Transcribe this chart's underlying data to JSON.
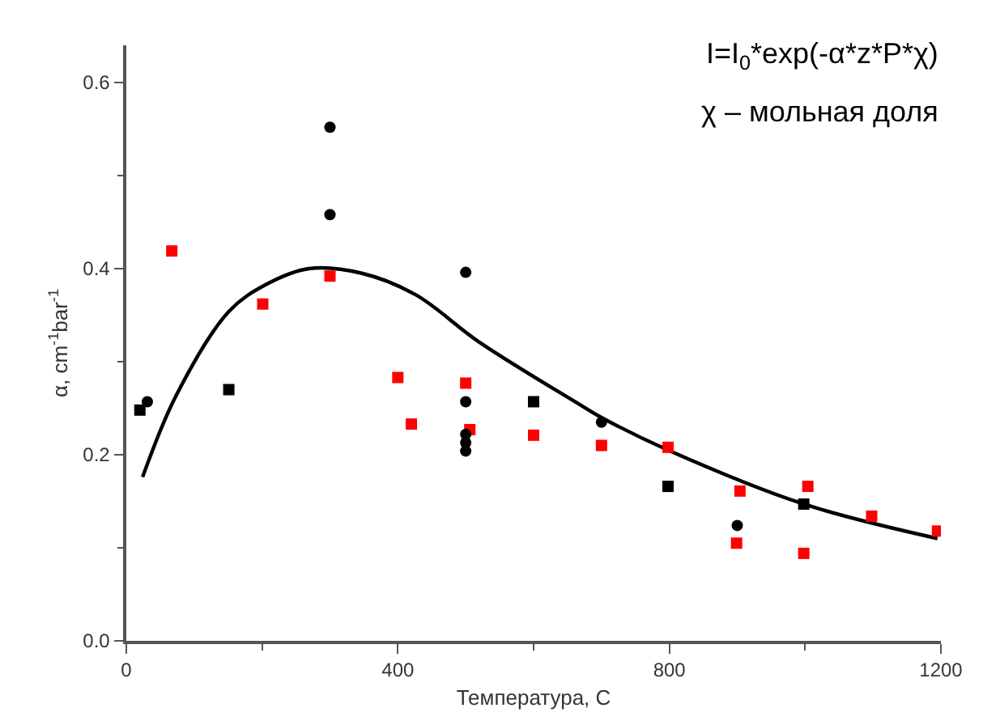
{
  "chart_data": {
    "type": "scatter",
    "xlabel": "Температура, C",
    "ylabel": "α, cm$^{-1}$bar$^{-1}$",
    "annotations": [
      "I=I$_{0}$*exp(-α*z*P*χ)",
      "χ – мольная доля"
    ],
    "xlim": [
      0,
      1200
    ],
    "xticks": [
      0,
      400,
      800,
      1200
    ],
    "ylim": [
      0,
      0.64
    ],
    "yticks": [
      {
        "value": 0,
        "label": "0.0"
      },
      {
        "value": 0.2,
        "label": "0.2"
      },
      {
        "value": 0.4,
        "label": "0.4"
      },
      {
        "value": 0.6,
        "label": "0.6"
      }
    ],
    "series": [
      {
        "color": "#000000",
        "marker": "circle",
        "x": [
          31,
          300,
          300,
          500,
          500,
          500,
          500,
          500,
          700,
          900
        ],
        "values": [
          0.257,
          0.552,
          0.458,
          0.396,
          0.257,
          0.222,
          0.213,
          0.204,
          0.235,
          0.124
        ]
      },
      {
        "color": "#000000",
        "marker": "square",
        "x": [
          20,
          151,
          600,
          798,
          998
        ],
        "values": [
          0.248,
          0.27,
          0.257,
          0.166,
          0.147
        ]
      },
      {
        "color": "#ff0000",
        "marker": "square",
        "x": [
          67,
          201,
          300,
          400,
          420,
          500,
          506,
          600,
          700,
          798,
          904,
          899,
          1004,
          998,
          1098,
          1195
        ],
        "values": [
          0.419,
          0.362,
          0.392,
          0.283,
          0.233,
          0.277,
          0.227,
          0.221,
          0.21,
          0.208,
          0.161,
          0.105,
          0.166,
          0.094,
          0.134,
          0.118
        ]
      },
      {
        "type": "line",
        "color": "#000000",
        "marker": "none",
        "line_style": "solid",
        "x": [
          24,
          73,
          151,
          206,
          269,
          347,
          426,
          520,
          661,
          700,
          798,
          998,
          1195
        ],
        "values": [
          0.176,
          0.263,
          0.354,
          0.383,
          0.4,
          0.395,
          0.372,
          0.321,
          0.257,
          0.24,
          0.205,
          0.147,
          0.11
        ]
      }
    ]
  }
}
